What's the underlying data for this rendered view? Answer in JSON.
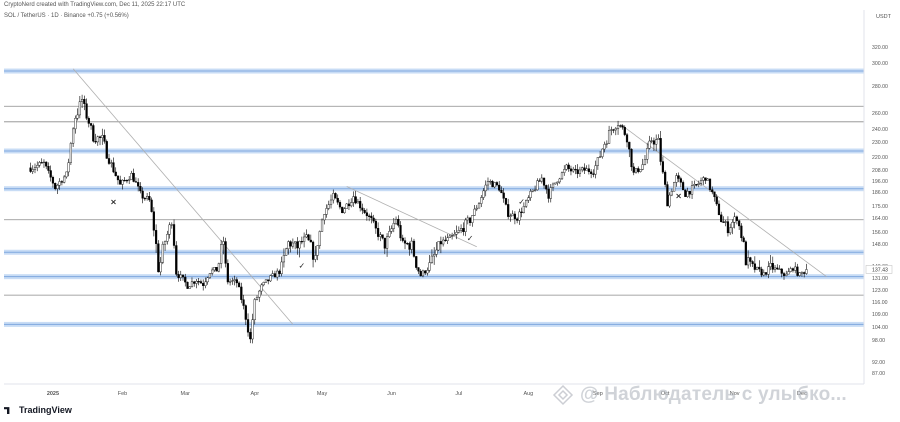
{
  "header": {
    "line1": "CryptoNerd created with TradingView.com, Dec 11, 2025 22:17 UTC",
    "line2": "SOL / TetherUS · 1D · Binance +0.75 (+0.56%)"
  },
  "branding": "TradingView",
  "watermark": "@ Наблюдатель с улыбко...",
  "colors": {
    "up": "#ffffff",
    "down": "#000000",
    "outline": "#000000",
    "zone_fill": "#c8dcf5",
    "zone_line": "#7fa8de",
    "level_line": "#8a8a8a",
    "trend_line": "#b0b0b0",
    "axis_text": "#555555"
  },
  "chart_data": {
    "type": "candlestick",
    "pair": "SOL / TetherUS",
    "timeframe": "1D",
    "exchange": "Binance",
    "currency": "USDT",
    "current_price": "137.43",
    "y_ticks": [
      "320.00",
      "300.00",
      "280.00",
      "260.00",
      "240.00",
      "230.00",
      "220.00",
      "208.00",
      "196.00",
      "186.00",
      "175.00",
      "164.00",
      "156.00",
      "148.00",
      "140.00",
      "131.00",
      "123.00",
      "116.00",
      "109.00",
      "104.00",
      "98.00",
      "92.00",
      "87.00"
    ],
    "x_ticks": [
      "2025",
      "Feb",
      "Mar",
      "Apr",
      "May",
      "Jun",
      "Jul",
      "Aug",
      "Sep",
      "Oct",
      "Nov",
      "Dec"
    ],
    "horizontal_levels": [
      {
        "price": 293,
        "style": "zone"
      },
      {
        "price": 265,
        "style": "line"
      },
      {
        "price": 249,
        "style": "line"
      },
      {
        "price": 224,
        "style": "zone"
      },
      {
        "price": 189,
        "style": "zone"
      },
      {
        "price": 163,
        "style": "line"
      },
      {
        "price": 145,
        "style": "zone"
      },
      {
        "price": 132,
        "style": "zone"
      },
      {
        "price": 120,
        "style": "line"
      },
      {
        "price": 105,
        "style": "zone"
      }
    ],
    "trendlines": [
      {
        "from": [
          "Jan 18",
          295
        ],
        "to": [
          "Apr 26",
          105
        ]
      },
      {
        "from": [
          "May 20",
          191
        ],
        "to": [
          "Jul 17",
          147
        ]
      },
      {
        "from": [
          "Sep 19",
          246
        ],
        "to": [
          "Dec 20",
          132
        ]
      }
    ],
    "markers": [
      {
        "date": "Feb 05",
        "price": 176,
        "symbol": "×"
      },
      {
        "date": "Apr 30",
        "price": 138,
        "symbol": "✓"
      },
      {
        "date": "Jul 14",
        "price": 150,
        "symbol": "✓"
      },
      {
        "date": "Aug 06",
        "price": 176,
        "symbol": "✓"
      },
      {
        "date": "Oct 15",
        "price": 181,
        "symbol": "×"
      }
    ],
    "anchors": [
      [
        "Dec 30",
        210
      ],
      [
        "Jan 05",
        214
      ],
      [
        "Jan 10",
        190
      ],
      [
        "Jan 15",
        203
      ],
      [
        "Jan 19",
        255
      ],
      [
        "Jan 22",
        270
      ],
      [
        "Jan 27",
        234
      ],
      [
        "Jan 31",
        232
      ],
      [
        "Feb 04",
        213
      ],
      [
        "Feb 08",
        192
      ],
      [
        "Feb 13",
        203
      ],
      [
        "Feb 17",
        184
      ],
      [
        "Feb 21",
        179
      ],
      [
        "Feb 25",
        137
      ],
      [
        "Mar 03",
        163
      ],
      [
        "Mar 05",
        135
      ],
      [
        "Mar 10",
        126
      ],
      [
        "Mar 14",
        130
      ],
      [
        "Mar 17",
        127
      ],
      [
        "Mar 20",
        136
      ],
      [
        "Mar 23",
        137
      ],
      [
        "Mar 26",
        150
      ],
      [
        "Mar 28",
        129
      ],
      [
        "Apr 01",
        128
      ],
      [
        "Apr 03",
        118
      ],
      [
        "Apr 07",
        98
      ],
      [
        "Apr 09",
        116
      ],
      [
        "Apr 12",
        125
      ],
      [
        "Apr 16",
        131
      ],
      [
        "Apr 20",
        136
      ],
      [
        "Apr 24",
        149
      ],
      [
        "Apr 28",
        147
      ],
      [
        "May 02",
        152
      ],
      [
        "May 06",
        142
      ],
      [
        "May 10",
        170
      ],
      [
        "May 14",
        182
      ],
      [
        "May 18",
        171
      ],
      [
        "May 23",
        183
      ],
      [
        "May 28",
        170
      ],
      [
        "Jun 02",
        157
      ],
      [
        "Jun 06",
        148
      ],
      [
        "Jun 11",
        164
      ],
      [
        "Jun 14",
        148
      ],
      [
        "Jun 18",
        148
      ],
      [
        "Jun 22",
        133
      ],
      [
        "Jun 26",
        140
      ],
      [
        "Jul 01",
        149
      ],
      [
        "Jul 05",
        151
      ],
      [
        "Jul 09",
        156
      ],
      [
        "Jul 14",
        163
      ],
      [
        "Jul 18",
        178
      ],
      [
        "Jul 22",
        196
      ],
      [
        "Jul 27",
        190
      ],
      [
        "Jul 31",
        168
      ],
      [
        "Aug 04",
        165
      ],
      [
        "Aug 08",
        177
      ],
      [
        "Aug 12",
        190
      ],
      [
        "Aug 15",
        199
      ],
      [
        "Aug 18",
        184
      ],
      [
        "Aug 22",
        198
      ],
      [
        "Aug 26",
        210
      ],
      [
        "Aug 30",
        205
      ],
      [
        "Sep 03",
        208
      ],
      [
        "Sep 07",
        207
      ],
      [
        "Sep 11",
        226
      ],
      [
        "Sep 15",
        240
      ],
      [
        "Sep 18",
        247
      ],
      [
        "Sep 22",
        234
      ],
      [
        "Sep 25",
        204
      ],
      [
        "Sep 29",
        213
      ],
      [
        "Oct 03",
        232
      ],
      [
        "Oct 06",
        230
      ],
      [
        "Oct 10",
        178
      ],
      [
        "Oct 14",
        200
      ],
      [
        "Oct 18",
        185
      ],
      [
        "Oct 22",
        190
      ],
      [
        "Oct 27",
        200
      ],
      [
        "Oct 31",
        180
      ],
      [
        "Nov 03",
        163
      ],
      [
        "Nov 06",
        158
      ],
      [
        "Nov 10",
        165
      ],
      [
        "Nov 14",
        142
      ],
      [
        "Nov 18",
        138
      ],
      [
        "Nov 22",
        134
      ],
      [
        "Nov 25",
        139
      ],
      [
        "Nov 29",
        136
      ],
      [
        "Dec 02",
        133
      ],
      [
        "Dec 05",
        139
      ],
      [
        "Dec 08",
        133
      ],
      [
        "Dec 11",
        137.4
      ]
    ]
  }
}
